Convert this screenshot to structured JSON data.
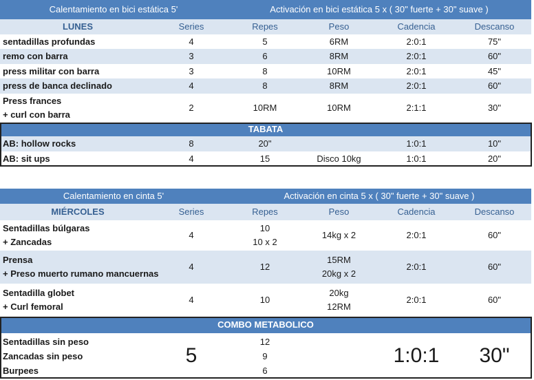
{
  "sections": [
    {
      "warmup": "Calentamiento en bici estática 5'",
      "activation": "Activación en bici estática 5 x ( 30\" fuerte + 30\" suave )",
      "day": "LUNES",
      "columns": [
        "Series",
        "Repes",
        "Peso",
        "Cadencia",
        "Descanso"
      ],
      "rows": [
        [
          [
            "sentadillas profundas"
          ],
          [
            "4"
          ],
          [
            "5"
          ],
          [
            "6RM"
          ],
          [
            "2:0:1"
          ],
          [
            "75\""
          ]
        ],
        [
          [
            "remo con barra"
          ],
          [
            "3"
          ],
          [
            "6"
          ],
          [
            "8RM"
          ],
          [
            "2:0:1"
          ],
          [
            "60\""
          ]
        ],
        [
          [
            "press militar con barra"
          ],
          [
            "3"
          ],
          [
            "8"
          ],
          [
            "10RM"
          ],
          [
            "2:0:1"
          ],
          [
            "45\""
          ]
        ],
        [
          [
            "press de banca declinado"
          ],
          [
            "4"
          ],
          [
            "8"
          ],
          [
            "8RM"
          ],
          [
            "2:0:1"
          ],
          [
            "60\""
          ]
        ],
        [
          [
            "Press frances",
            "+ curl con barra"
          ],
          [
            "2"
          ],
          [
            "10RM"
          ],
          [
            "10RM"
          ],
          [
            "2:1:1"
          ],
          [
            "30\""
          ]
        ]
      ],
      "block": {
        "title": "TABATA",
        "rows": [
          [
            [
              "AB: hollow rocks"
            ],
            [
              "8"
            ],
            [
              "20\""
            ],
            [],
            [
              "1:0:1"
            ],
            [
              "10\""
            ]
          ],
          [
            [
              "AB: sit ups"
            ],
            [
              "4"
            ],
            [
              "15"
            ],
            [
              "Disco 10kg"
            ],
            [
              "1:0:1"
            ],
            [
              "20\""
            ]
          ]
        ]
      }
    },
    {
      "warmup": "Calentamiento en cinta 5'",
      "activation": "Activación en cinta 5 x ( 30\" fuerte + 30\" suave )",
      "day": "MIÉRCOLES",
      "columns": [
        "Series",
        "Repes",
        "Peso",
        "Cadencia",
        "Descanso"
      ],
      "rows": [
        [
          [
            "Sentadillas búlgaras",
            "+ Zancadas"
          ],
          [
            "4"
          ],
          [
            "10",
            "10 x 2"
          ],
          [
            "14kg x 2"
          ],
          [
            "2:0:1"
          ],
          [
            "60\""
          ]
        ],
        [
          [
            "Prensa",
            "+ Preso muerto rumano mancuernas"
          ],
          [
            "4"
          ],
          [
            "12"
          ],
          [
            "15RM",
            "20kg x 2"
          ],
          [
            "2:0:1"
          ],
          [
            "60\""
          ]
        ],
        [
          [
            "Sentadilla globet",
            "+ Curl femoral"
          ],
          [
            "4"
          ],
          [
            "10"
          ],
          [
            "20kg",
            "12RM"
          ],
          [
            "2:0:1"
          ],
          [
            "60\""
          ]
        ]
      ],
      "block": {
        "title": "COMBO METABOLICO",
        "rows": [
          [
            [
              "Sentadillas sin peso",
              "Zancadas sin peso",
              "Burpees"
            ],
            [
              "5"
            ],
            [
              "12",
              "9",
              "6"
            ],
            [],
            [
              "1:0:1"
            ],
            [
              "30\""
            ]
          ]
        ]
      }
    }
  ]
}
